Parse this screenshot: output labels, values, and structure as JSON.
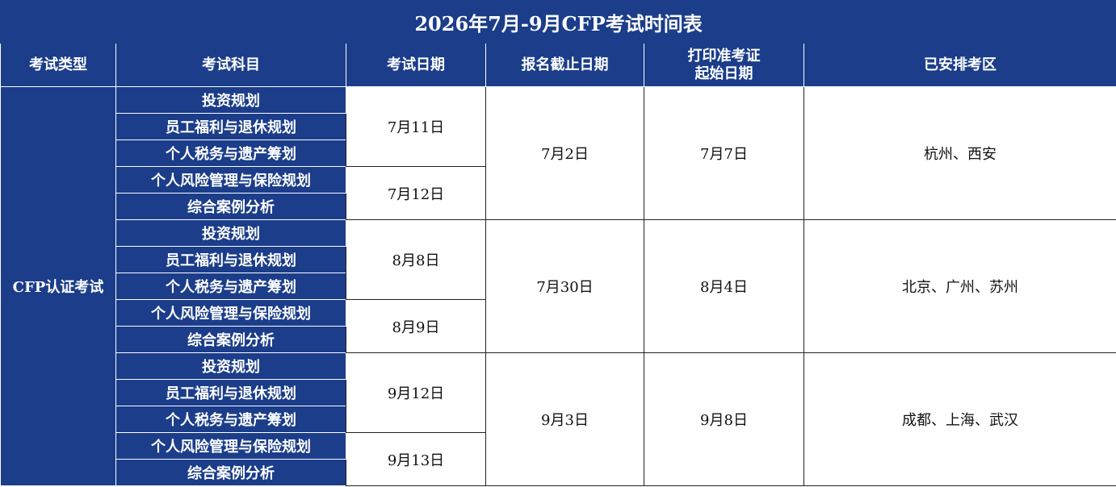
{
  "title": "2026年7月-9月CFP考试时间表",
  "headers": [
    "考试类型",
    "考试科目",
    "考试日期",
    "报名截止日期",
    "打印准考证\n起始日期",
    "已安排考区"
  ],
  "header_print_line1": "打印准考证",
  "header_print_line2": "起始日期",
  "exam_type": "CFP认证考试",
  "subjects": [
    "投资规划",
    "员工福利与退休规划",
    "个人税务与遗产筹划",
    "个人风险管理与保险规划",
    "综合案例分析"
  ],
  "groups": [
    {
      "exam_dates": [
        "7月11日",
        "7月12日"
      ],
      "deadline": "7月2日",
      "print_start": "7月7日",
      "locations": "杭州、西安"
    },
    {
      "exam_dates": [
        "8月8日",
        "8月9日"
      ],
      "deadline": "7月30日",
      "print_start": "8月4日",
      "locations": "北京、广州、苏州"
    },
    {
      "exam_dates": [
        "9月12日",
        "9月13日"
      ],
      "deadline": "9月3日",
      "print_start": "9月8日",
      "locations": "成都、上海、武汉"
    }
  ],
  "colors": {
    "header_bg": "#1b3d8a",
    "header_text": "#ffffff"
  }
}
